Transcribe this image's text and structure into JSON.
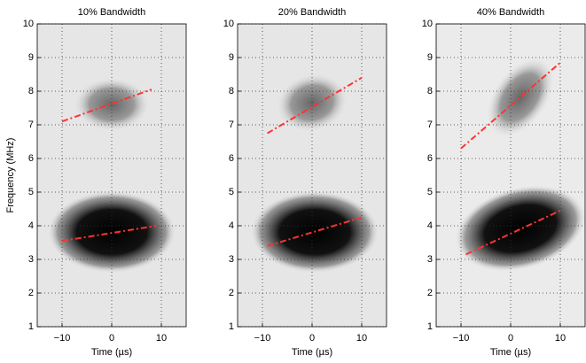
{
  "chart_data": [
    {
      "type": "line",
      "title": "10% Bandwidth",
      "xlabel": "Time (µs)",
      "ylabel": "Frequency (MHz)",
      "xlim": [
        -15,
        15
      ],
      "ylim": [
        1,
        10
      ],
      "xticks": [
        {
          "value": -10,
          "label": "−10"
        },
        0,
        10
      ],
      "yticks": [
        1,
        2,
        3,
        4,
        5,
        6,
        7,
        8,
        9,
        10
      ],
      "grid": true,
      "series": [
        {
          "color": "#ff3333",
          "x": [
            -10,
            8
          ],
          "values": [
            7.1,
            8.05
          ]
        },
        {
          "color": "#ff3333",
          "x": [
            -10,
            9
          ],
          "values": [
            3.55,
            4.0
          ]
        }
      ]
    },
    {
      "type": "line",
      "title": "20% Bandwidth",
      "xlabel": "Time (µs)",
      "xlim": [
        -15,
        15
      ],
      "ylim": [
        1,
        10
      ],
      "xticks": [
        {
          "value": -10,
          "label": "−10"
        },
        0,
        10
      ],
      "yticks": [
        1,
        2,
        3,
        4,
        5,
        6,
        7,
        8,
        9,
        10
      ],
      "grid": true,
      "series": [
        {
          "color": "#ff3333",
          "x": [
            -9,
            10
          ],
          "values": [
            6.75,
            8.4
          ]
        },
        {
          "color": "#ff3333",
          "x": [
            -9,
            10
          ],
          "values": [
            3.4,
            4.25
          ]
        }
      ]
    },
    {
      "type": "line",
      "title": "40% Bandwidth",
      "xlabel": "Time (µs)",
      "xlim": [
        -15,
        15
      ],
      "ylim": [
        1,
        10
      ],
      "xticks": [
        {
          "value": -10,
          "label": "−10"
        },
        0,
        10
      ],
      "yticks": [
        1,
        2,
        3,
        4,
        5,
        6,
        7,
        8,
        9,
        10
      ],
      "grid": true,
      "series": [
        {
          "color": "#ff3333",
          "x": [
            -10,
            10
          ],
          "values": [
            6.3,
            8.85
          ]
        },
        {
          "color": "#ff3333",
          "x": [
            -9,
            10
          ],
          "values": [
            3.15,
            4.45
          ]
        }
      ]
    }
  ]
}
